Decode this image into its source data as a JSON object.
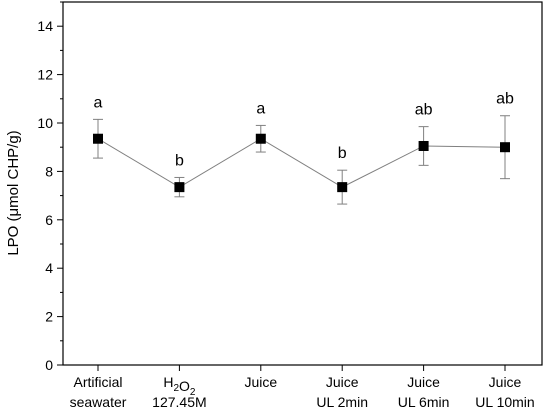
{
  "chart_data": {
    "type": "line",
    "ylabel": "LPO (μmol CHP/g)",
    "ylim": [
      0,
      15
    ],
    "yticks": [
      0,
      2,
      4,
      6,
      8,
      10,
      12,
      14
    ],
    "grid": false,
    "categories": [
      [
        "Artificial",
        "seawater"
      ],
      [
        "H2O2",
        "127.45M"
      ],
      [
        "Juice"
      ],
      [
        "Juice",
        "UL 2min"
      ],
      [
        "Juice",
        "UL 6min"
      ],
      [
        "Juice",
        "UL 10min"
      ]
    ],
    "series": [
      {
        "values": [
          9.35,
          7.35,
          9.35,
          7.35,
          9.05,
          9.0
        ],
        "errors": [
          0.8,
          0.4,
          0.55,
          0.7,
          0.8,
          1.3
        ],
        "labels": [
          "a",
          "b",
          "a",
          "b",
          "ab",
          "ab"
        ]
      }
    ]
  }
}
